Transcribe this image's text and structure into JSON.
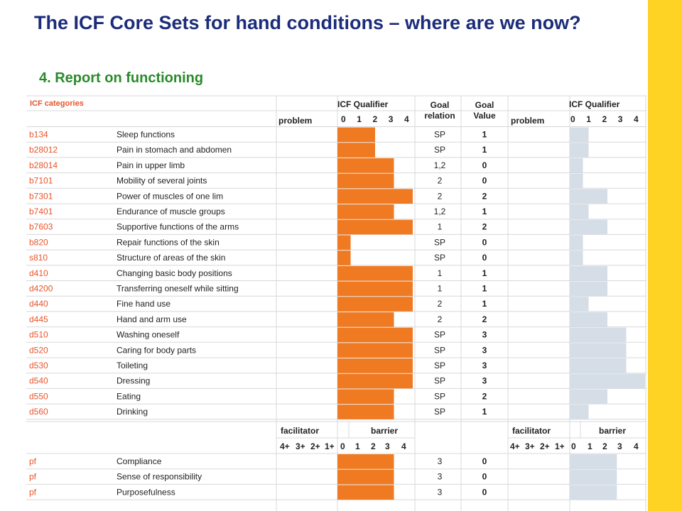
{
  "slide": {
    "title": "The ICF Core Sets for hand conditions – where are we now?",
    "subtitle": "4. Report on functioning"
  },
  "colors": {
    "accent_bar": "#ffd323",
    "title": "#1c2c7a",
    "subtitle": "#2a8a2a",
    "code_text": "#e8542a",
    "bar_before": "#f07a22",
    "bar_after": "#d5dde6",
    "grid": "#d8d8d8"
  },
  "table": {
    "header": {
      "categories": "ICF categories",
      "icf_qualifier": "ICF Qualifier",
      "problem": "problem",
      "goal_relation_1": "Goal",
      "goal_relation_2": "relation",
      "goal_value_1": "Goal",
      "goal_value_2": "Value",
      "scale": [
        "0",
        "1",
        "2",
        "3",
        "4"
      ]
    },
    "rows": [
      {
        "code": "b134",
        "name": "Sleep functions",
        "before": 2,
        "relation": "SP",
        "value": "1",
        "after": 1
      },
      {
        "code": "b28012",
        "name": "Pain in stomach and abdomen",
        "before": 2,
        "relation": "SP",
        "value": "1",
        "after": 1
      },
      {
        "code": "b28014",
        "name": "Pain in upper limb",
        "before": 3,
        "relation": "1,2",
        "value": "0",
        "after": 0.7
      },
      {
        "code": "b7101",
        "name": "Mobility of several joints",
        "before": 3,
        "relation": "2",
        "value": "0",
        "after": 0.7
      },
      {
        "code": "b7301",
        "name": "Power of muscles of one lim",
        "before": 4,
        "relation": "2",
        "value": "2",
        "after": 2
      },
      {
        "code": "b7401",
        "name": "Endurance of muscle groups",
        "before": 3,
        "relation": "1,2",
        "value": "1",
        "after": 1
      },
      {
        "code": "b7603",
        "name": "Supportive functions of the arms",
        "before": 4,
        "relation": "1",
        "value": "2",
        "after": 2
      },
      {
        "code": "b820",
        "name": "Repair functions of the skin",
        "before": 0.7,
        "relation": "SP",
        "value": "0",
        "after": 0.7
      },
      {
        "code": "s810",
        "name": "Structure of areas of the skin",
        "before": 0.7,
        "relation": "SP",
        "value": "0",
        "after": 0.7
      },
      {
        "code": "d410",
        "name": "Changing basic body positions",
        "before": 4,
        "relation": "1",
        "value": "1",
        "after": 2
      },
      {
        "code": "d4200",
        "name": "Transferring oneself while sitting",
        "before": 4,
        "relation": "1",
        "value": "1",
        "after": 2
      },
      {
        "code": "d440",
        "name": "Fine hand use",
        "before": 4,
        "relation": "2",
        "value": "1",
        "after": 1
      },
      {
        "code": "d445",
        "name": "Hand and arm use",
        "before": 3,
        "relation": "2",
        "value": "2",
        "after": 2
      },
      {
        "code": "d510",
        "name": "Washing oneself",
        "before": 4,
        "relation": "SP",
        "value": "3",
        "after": 3
      },
      {
        "code": "d520",
        "name": "Caring for body parts",
        "before": 4,
        "relation": "SP",
        "value": "3",
        "after": 3
      },
      {
        "code": "d530",
        "name": "Toileting",
        "before": 4,
        "relation": "SP",
        "value": "3",
        "after": 3
      },
      {
        "code": "d540",
        "name": "Dressing",
        "before": 4,
        "relation": "SP",
        "value": "3",
        "after": 4
      },
      {
        "code": "d550",
        "name": "Eating",
        "before": 3,
        "relation": "SP",
        "value": "2",
        "after": 2
      },
      {
        "code": "d560",
        "name": "Drinking",
        "before": 3,
        "relation": "SP",
        "value": "1",
        "after": 1
      }
    ],
    "personal_header": {
      "facilitator": "facilitator",
      "barrier": "barrier",
      "scale": [
        "4+",
        "3+",
        "2+",
        "1+",
        "0",
        "1",
        "2",
        "3",
        "4"
      ]
    },
    "personal_rows": [
      {
        "code": "pf",
        "name": "Compliance",
        "before": 3,
        "relation": "3",
        "value": "0",
        "after": 2.5
      },
      {
        "code": "pf",
        "name": "Sense of responsibility",
        "before": 3,
        "relation": "3",
        "value": "0",
        "after": 2.5
      },
      {
        "code": "pf",
        "name": "Purposefulness",
        "before": 3,
        "relation": "3",
        "value": "0",
        "after": 2.5
      }
    ]
  }
}
